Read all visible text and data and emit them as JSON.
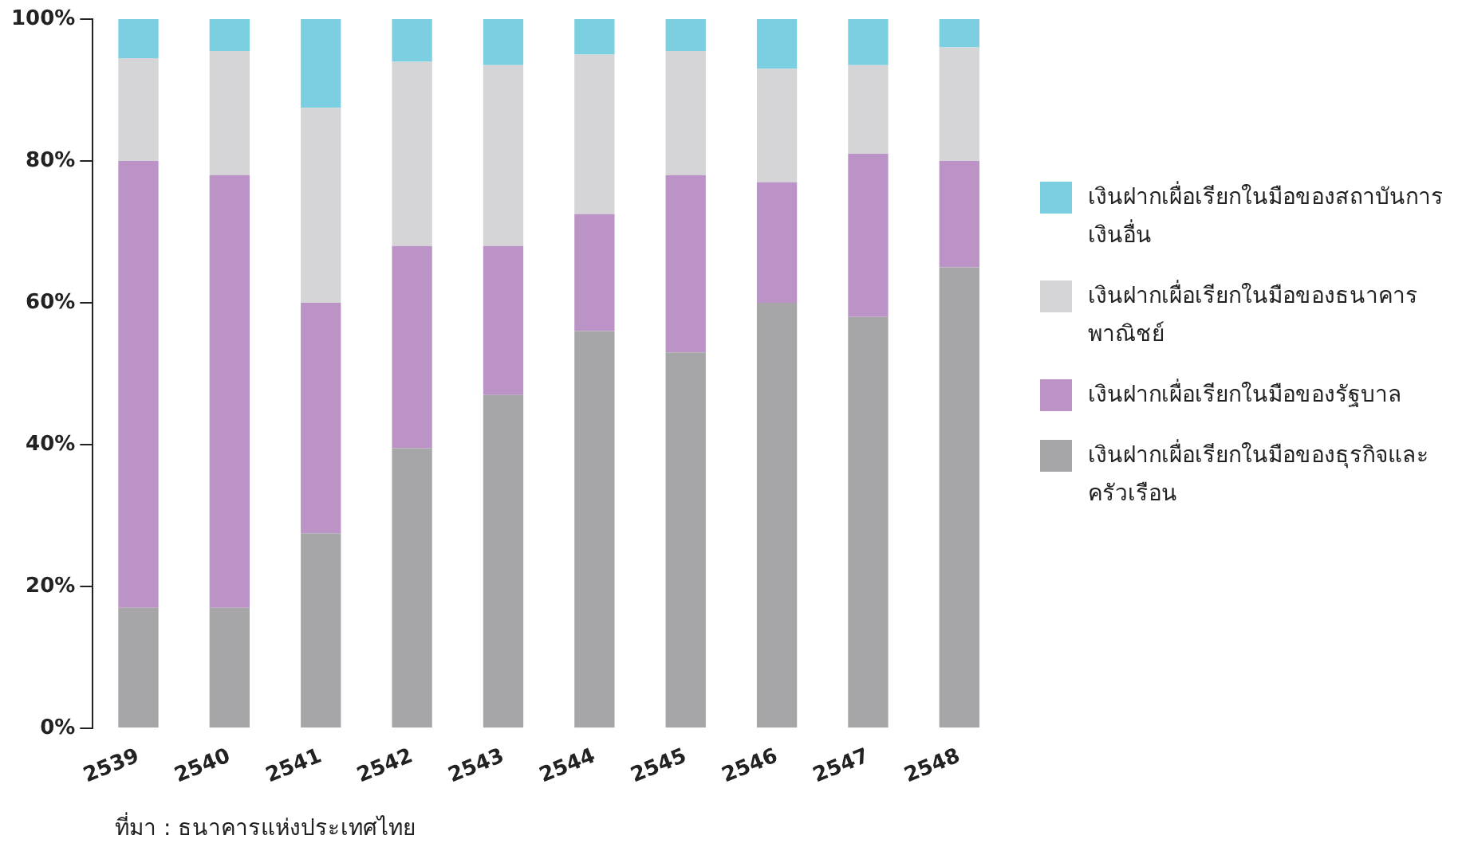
{
  "chart_data": {
    "type": "bar",
    "stacked": true,
    "categories": [
      "2539",
      "2540",
      "2541",
      "2542",
      "2543",
      "2544",
      "2545",
      "2546",
      "2547",
      "2548"
    ],
    "series": [
      {
        "name": "เงินฝากเผื่อเรียกในมือของธุรกิจและครัวเรือน",
        "color": "#a6a6a8",
        "values": [
          17,
          17,
          27.5,
          39.5,
          47,
          56,
          53,
          60,
          58,
          65
        ]
      },
      {
        "name": "เงินฝากเผื่อเรียกในมือของรัฐบาล",
        "color": "#bb93c6",
        "values": [
          63,
          61,
          32.5,
          28.5,
          21,
          16.5,
          25,
          17,
          23,
          15
        ]
      },
      {
        "name": "เงินฝากเผื่อเรียกในมือของธนาคารพาณิชย์",
        "color": "#d5d5d7",
        "values": [
          14.5,
          17.5,
          27.5,
          26,
          25.5,
          22.5,
          17.5,
          16,
          12.5,
          16
        ]
      },
      {
        "name": "เงินฝากเผื่อเรียกในมือของสถาบันการเงินอื่น",
        "color": "#7ccfe0",
        "values": [
          5.5,
          4.5,
          12.5,
          6,
          6.5,
          5,
          4.5,
          7,
          6.5,
          4
        ]
      }
    ],
    "ylim": [
      0,
      100
    ],
    "yticks": [
      {
        "value": 0,
        "label": "0%"
      },
      {
        "value": 20,
        "label": "20%"
      },
      {
        "value": 40,
        "label": "40%"
      },
      {
        "value": 60,
        "label": "60%"
      },
      {
        "value": 80,
        "label": "80%"
      },
      {
        "value": 100,
        "label": "100%"
      }
    ],
    "grid": false,
    "legend": "right",
    "annotations": [
      "ที่มา : ธนาคารแห่งประเทศไทย"
    ]
  }
}
